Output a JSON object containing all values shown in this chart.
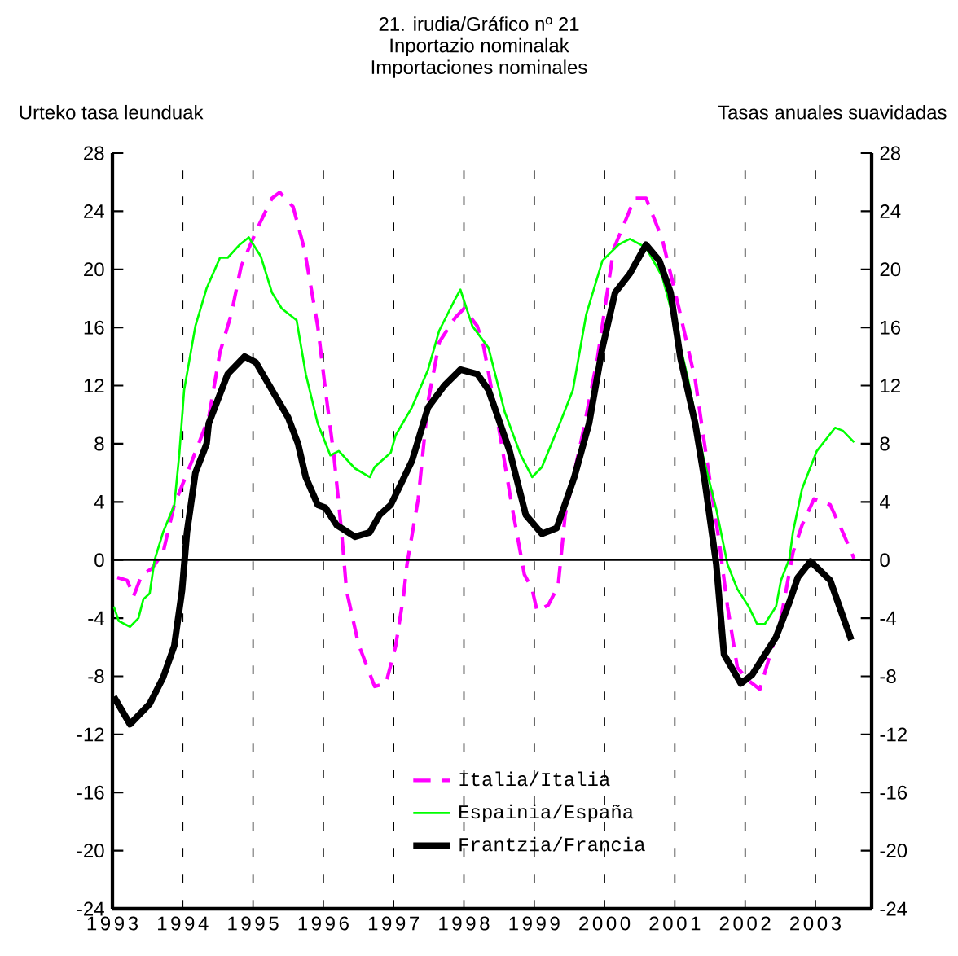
{
  "chart_data": {
    "type": "line",
    "title": "21. irudia/Gráfico nº 21",
    "subtitle": "Inportazio nominalak",
    "annotations": [
      "Importaciones nominales",
      "Urteko tasa leunduak",
      "Tasas anuales suavidadas"
    ],
    "xlim": [
      1993,
      2003.8
    ],
    "xticks": [
      1993,
      1994,
      1995,
      1996,
      1997,
      1998,
      1999,
      2000,
      2001,
      2002,
      2003
    ],
    "ylim": [
      -24,
      28
    ],
    "yticks": [
      -24,
      -20,
      -16,
      -12,
      -8,
      -4,
      0,
      4,
      8,
      12,
      16,
      20,
      24,
      28
    ],
    "y2lim": [
      -24,
      28
    ],
    "y2ticks": [
      -24,
      -20,
      -16,
      -12,
      -8,
      -4,
      0,
      4,
      8,
      12,
      16,
      20,
      24,
      28
    ],
    "grid": "x",
    "legend": "bottom",
    "ref_lines": [
      {
        "axis": "y",
        "value": 0,
        "color": "#000000"
      }
    ],
    "series": [
      {
        "name": "Italia/Italia",
        "color": "#ff00ff",
        "line_style": "dashed",
        "x": [
          1993.07,
          1993.21,
          1993.3,
          1993.42,
          1993.56,
          1993.72,
          1993.88,
          1994.13,
          1994.37,
          1994.53,
          1994.69,
          1994.83,
          1995.06,
          1995.27,
          1995.38,
          1995.57,
          1995.73,
          1995.92,
          1996.03,
          1996.15,
          1996.26,
          1996.33,
          1996.5,
          1996.73,
          1996.89,
          1997.03,
          1997.14,
          1997.19,
          1997.35,
          1997.49,
          1997.65,
          1997.88,
          1998.0,
          1998.19,
          1998.28,
          1998.51,
          1998.69,
          1998.86,
          1998.97,
          1999.04,
          1999.2,
          1999.34,
          1999.44,
          1999.69,
          1999.9,
          2000.13,
          2000.43,
          2000.59,
          2000.82,
          2001.06,
          2001.29,
          2001.47,
          2001.63,
          2001.75,
          2001.89,
          2002.05,
          2002.21,
          2002.35,
          2002.51,
          2002.68,
          2002.81,
          2002.98,
          2003.21,
          2003.39,
          2003.55
        ],
        "values": [
          -1.2,
          -1.4,
          -2.5,
          -1.0,
          -0.6,
          0.5,
          3.8,
          6.8,
          9.8,
          14.3,
          16.9,
          20.2,
          22.8,
          24.9,
          25.3,
          24.3,
          21.4,
          16.1,
          11.7,
          7.2,
          1.9,
          -2.1,
          -5.8,
          -8.7,
          -8.5,
          -5.9,
          -2.5,
          -0.3,
          4.2,
          10.9,
          15.0,
          16.7,
          17.3,
          16.1,
          14.7,
          8.7,
          3.5,
          -1.0,
          -2.0,
          -3.5,
          -3.1,
          -1.8,
          3.1,
          8.7,
          13.9,
          21.4,
          24.9,
          24.9,
          22.1,
          17.3,
          12.4,
          6.4,
          1.3,
          -3.2,
          -7.4,
          -8.3,
          -8.9,
          -6.6,
          -4.0,
          0.5,
          2.4,
          4.2,
          3.8,
          1.9,
          0.1
        ]
      },
      {
        "name": "Espainia/España",
        "color": "#00ff00",
        "line_style": "solid",
        "x": [
          1993.02,
          1993.09,
          1993.25,
          1993.37,
          1993.44,
          1993.53,
          1993.6,
          1993.72,
          1993.88,
          1993.95,
          1994.02,
          1994.18,
          1994.34,
          1994.53,
          1994.64,
          1994.81,
          1994.94,
          1995.11,
          1995.27,
          1995.41,
          1995.62,
          1995.75,
          1995.92,
          1996.1,
          1996.22,
          1996.45,
          1996.66,
          1996.73,
          1996.96,
          1997.03,
          1997.26,
          1997.49,
          1997.65,
          1997.88,
          1997.95,
          1998.12,
          1998.35,
          1998.58,
          1998.81,
          1998.97,
          1999.11,
          1999.34,
          1999.55,
          1999.74,
          1999.97,
          2000.2,
          2000.36,
          2000.59,
          2000.82,
          2001.01,
          2001.19,
          2001.4,
          2001.59,
          2001.75,
          2001.89,
          2002.05,
          2002.17,
          2002.28,
          2002.44,
          2002.51,
          2002.63,
          2002.68,
          2002.81,
          2003.02,
          2003.28,
          2003.39,
          2003.55
        ],
        "values": [
          -3.2,
          -4.2,
          -4.6,
          -4.0,
          -2.7,
          -2.3,
          0.0,
          1.9,
          3.8,
          7.2,
          11.7,
          16.1,
          18.7,
          20.8,
          20.8,
          21.7,
          22.2,
          20.9,
          18.4,
          17.3,
          16.5,
          12.8,
          9.4,
          7.2,
          7.5,
          6.3,
          5.7,
          6.4,
          7.4,
          8.6,
          10.5,
          13.1,
          15.8,
          18.0,
          18.6,
          16.1,
          14.6,
          10.2,
          7.2,
          5.7,
          6.4,
          9.1,
          11.7,
          16.9,
          20.6,
          21.7,
          22.1,
          21.5,
          19.5,
          16.1,
          12.4,
          7.2,
          3.5,
          -0.3,
          -2.0,
          -3.2,
          -4.4,
          -4.4,
          -3.2,
          -1.4,
          0.1,
          1.9,
          4.9,
          7.5,
          9.1,
          8.9,
          8.1
        ]
      },
      {
        "name": "Frantzia/Francia",
        "color": "#000000",
        "line_style": "solid",
        "x": [
          1993.02,
          1993.25,
          1993.53,
          1993.72,
          1993.88,
          1993.99,
          1994.06,
          1994.18,
          1994.34,
          1994.37,
          1994.64,
          1994.88,
          1995.04,
          1995.27,
          1995.5,
          1995.64,
          1995.75,
          1995.92,
          1996.03,
          1996.19,
          1996.45,
          1996.66,
          1996.8,
          1996.96,
          1997.26,
          1997.49,
          1997.72,
          1997.95,
          1998.19,
          1998.35,
          1998.65,
          1998.88,
          1999.11,
          1999.32,
          1999.57,
          1999.78,
          1999.97,
          2000.15,
          2000.36,
          2000.59,
          2000.78,
          2000.94,
          2001.08,
          2001.29,
          2001.43,
          2001.59,
          2001.7,
          2001.94,
          2002.1,
          2002.44,
          2002.63,
          2002.75,
          2002.93,
          2003.21,
          2003.37,
          2003.51
        ],
        "values": [
          -9.4,
          -11.3,
          -9.9,
          -8.1,
          -5.9,
          -2.1,
          1.9,
          6.0,
          8.0,
          9.4,
          12.8,
          14.0,
          13.6,
          11.7,
          9.8,
          8.0,
          5.7,
          3.8,
          3.6,
          2.4,
          1.6,
          1.9,
          3.1,
          3.8,
          6.8,
          10.5,
          12.0,
          13.1,
          12.8,
          11.7,
          7.5,
          3.1,
          1.8,
          2.2,
          5.7,
          9.4,
          14.6,
          18.4,
          19.7,
          21.7,
          20.6,
          18.4,
          13.9,
          9.4,
          5.3,
          -0.3,
          -6.5,
          -8.5,
          -7.9,
          -5.3,
          -2.9,
          -1.2,
          -0.1,
          -1.4,
          -3.6,
          -5.5
        ]
      }
    ]
  }
}
